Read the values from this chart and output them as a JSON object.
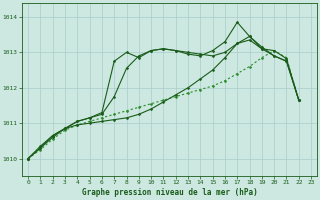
{
  "xlabel": "Graphe pression niveau de la mer (hPa)",
  "bg_color": "#cce8e0",
  "grid_color": "#aacccc",
  "line_color_dark": "#1a5c1a",
  "line_color_light": "#2d8c2d",
  "xlim": [
    -0.5,
    23.5
  ],
  "ylim": [
    1009.5,
    1014.4
  ],
  "yticks": [
    1010,
    1011,
    1012,
    1013,
    1014
  ],
  "xticks": [
    0,
    1,
    2,
    3,
    4,
    5,
    6,
    7,
    8,
    9,
    10,
    11,
    12,
    13,
    14,
    15,
    16,
    17,
    18,
    19,
    20,
    21,
    22,
    23
  ],
  "series": [
    {
      "x": [
        0,
        1,
        2,
        3,
        4,
        5,
        6,
        7,
        8,
        9,
        10,
        11,
        12,
        13,
        14,
        15,
        16,
        17,
        18,
        19,
        20,
        21,
        22
      ],
      "y": [
        1010.0,
        1010.25,
        1010.55,
        1010.8,
        1010.95,
        1011.05,
        1011.15,
        1011.25,
        1011.35,
        1011.45,
        1011.55,
        1011.65,
        1011.75,
        1011.85,
        1011.95,
        1012.05,
        1012.2,
        1012.4,
        1012.6,
        1012.85,
        1013.05,
        1012.85,
        1011.65
      ],
      "style": "dotted",
      "marker": "D",
      "color": "#2d8c2d"
    },
    {
      "x": [
        0,
        1,
        2,
        3,
        4,
        5,
        6,
        7,
        8,
        9,
        10,
        11,
        12,
        13,
        14,
        15,
        16,
        17,
        18,
        19,
        20,
        21,
        22
      ],
      "y": [
        1010.0,
        1010.35,
        1010.65,
        1010.85,
        1010.95,
        1011.0,
        1011.05,
        1011.1,
        1011.15,
        1011.25,
        1011.4,
        1011.6,
        1011.8,
        1012.0,
        1012.25,
        1012.5,
        1012.85,
        1013.25,
        1013.45,
        1013.15,
        1012.9,
        1012.75,
        1011.65
      ],
      "style": "solid",
      "marker": "D",
      "color": "#1a5c1a"
    },
    {
      "x": [
        0,
        1,
        2,
        3,
        4,
        5,
        6,
        7,
        8,
        9,
        10,
        11,
        12,
        13,
        14,
        15,
        16,
        17,
        18,
        19,
        20,
        21,
        22
      ],
      "y": [
        1010.0,
        1010.3,
        1010.65,
        1010.85,
        1011.05,
        1011.15,
        1011.25,
        1011.75,
        1012.55,
        1012.9,
        1013.05,
        1013.1,
        1013.05,
        1013.0,
        1012.95,
        1012.9,
        1013.0,
        1013.25,
        1013.35,
        1013.1,
        1013.05,
        1012.82,
        1011.65
      ],
      "style": "solid",
      "marker": "D",
      "color": "#1a5c1a"
    },
    {
      "x": [
        0,
        1,
        2,
        3,
        4,
        5,
        6,
        7,
        8,
        9,
        10,
        11,
        12,
        13,
        14,
        15,
        16,
        17,
        18,
        19,
        20,
        21,
        22
      ],
      "y": [
        1010.0,
        1010.3,
        1010.6,
        1010.85,
        1011.05,
        1011.15,
        1011.3,
        1012.75,
        1013.0,
        1012.85,
        1013.05,
        1013.1,
        1013.05,
        1012.95,
        1012.9,
        1013.05,
        1013.3,
        1013.85,
        1013.45,
        1013.1,
        1012.9,
        1012.75,
        1011.65
      ],
      "style": "solid",
      "marker": "D",
      "color": "#1a5c1a"
    }
  ]
}
